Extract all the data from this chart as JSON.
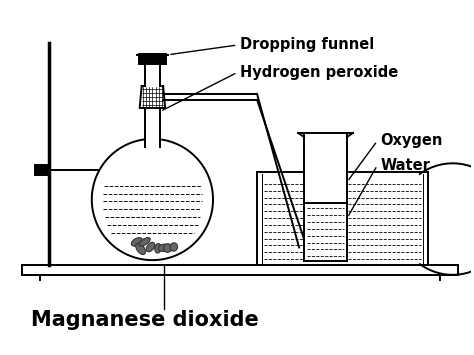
{
  "title": "Magnanese dioxide",
  "labels": {
    "dropping_funnel": "Dropping funnel",
    "hydrogen_peroxide": "Hydrogen peroxide",
    "oxygen": "Oxygen",
    "water": "Water",
    "manganese_dioxide": "Magnanese dioxide"
  },
  "bg_color": "#ffffff",
  "line_color": "#000000",
  "title_fontsize": 15,
  "label_fontsize": 10.5
}
